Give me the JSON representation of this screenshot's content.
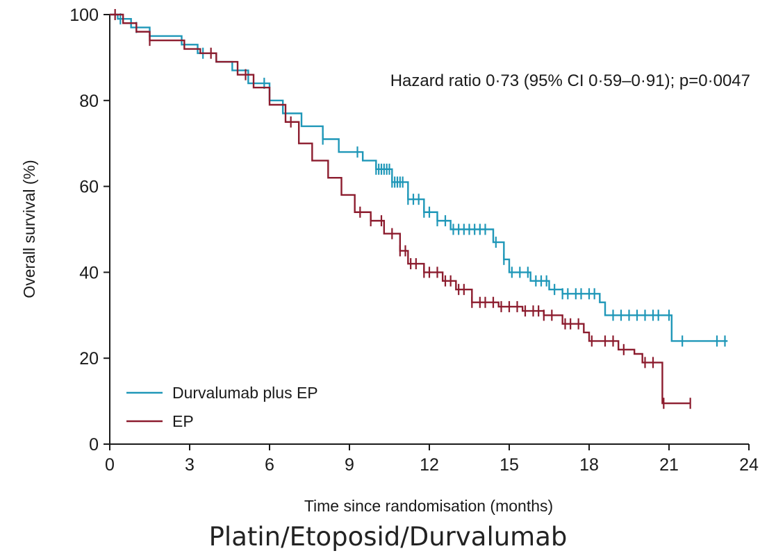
{
  "caption": "Platin/Etoposid/Durvalumab",
  "chart_data": {
    "type": "line",
    "subtype": "kaplan-meier",
    "annotation": "Hazard ratio 0·73 (95% CI 0·59–0·91); p=0·0047",
    "xlabel": "Time since randomisation (months)",
    "ylabel": "Overall survival (%)",
    "xlim": [
      0,
      24
    ],
    "ylim": [
      0,
      100
    ],
    "xticks": [
      0,
      3,
      6,
      9,
      12,
      15,
      18,
      21,
      24
    ],
    "yticks": [
      0,
      20,
      40,
      60,
      80,
      100
    ],
    "grid": false,
    "legend_position": "bottom-left",
    "series": [
      {
        "name": "Durvalumab plus EP",
        "color": "#1f97b8",
        "points": [
          [
            0,
            100
          ],
          [
            0.3,
            99
          ],
          [
            0.8,
            97
          ],
          [
            1.5,
            95
          ],
          [
            2.7,
            93
          ],
          [
            3.3,
            91
          ],
          [
            4.0,
            89
          ],
          [
            4.6,
            87
          ],
          [
            5.2,
            84
          ],
          [
            6.0,
            80
          ],
          [
            6.5,
            77
          ],
          [
            7.2,
            74
          ],
          [
            8.0,
            71
          ],
          [
            8.6,
            68
          ],
          [
            9.5,
            66
          ],
          [
            10.0,
            64
          ],
          [
            10.6,
            61
          ],
          [
            11.2,
            57
          ],
          [
            11.8,
            54
          ],
          [
            12.3,
            52
          ],
          [
            12.8,
            50
          ],
          [
            14.1,
            50
          ],
          [
            14.4,
            47
          ],
          [
            14.8,
            43
          ],
          [
            15.0,
            40
          ],
          [
            15.8,
            38
          ],
          [
            16.5,
            36
          ],
          [
            17.0,
            35
          ],
          [
            18.4,
            33
          ],
          [
            18.6,
            30
          ],
          [
            20.9,
            30
          ],
          [
            21.1,
            24
          ],
          [
            23.2,
            24
          ]
        ],
        "censor_x": [
          0.4,
          1.0,
          3.5,
          5.8,
          8.0,
          9.3,
          10.0,
          10.1,
          10.2,
          10.3,
          10.4,
          10.5,
          10.6,
          10.7,
          10.8,
          10.9,
          11.0,
          11.2,
          11.4,
          11.6,
          11.8,
          12.0,
          12.3,
          12.6,
          12.9,
          13.1,
          13.3,
          13.5,
          13.7,
          13.9,
          14.1,
          14.5,
          14.8,
          15.1,
          15.4,
          15.7,
          16.0,
          16.2,
          16.4,
          16.7,
          17.0,
          17.2,
          17.5,
          17.7,
          18.0,
          18.2,
          18.9,
          19.2,
          19.5,
          19.8,
          20.1,
          20.4,
          20.6,
          21.0,
          21.5,
          22.8,
          23.1
        ]
      },
      {
        "name": "EP",
        "color": "#8c1c2e",
        "points": [
          [
            0,
            100
          ],
          [
            0.5,
            98
          ],
          [
            1.0,
            96
          ],
          [
            1.5,
            94
          ],
          [
            2.8,
            92
          ],
          [
            3.4,
            91
          ],
          [
            4.0,
            89
          ],
          [
            4.8,
            86
          ],
          [
            5.4,
            83
          ],
          [
            6.0,
            79
          ],
          [
            6.6,
            75
          ],
          [
            7.1,
            70
          ],
          [
            7.6,
            66
          ],
          [
            8.2,
            62
          ],
          [
            8.7,
            58
          ],
          [
            9.2,
            54
          ],
          [
            9.8,
            52
          ],
          [
            10.3,
            49
          ],
          [
            10.9,
            45
          ],
          [
            11.2,
            42
          ],
          [
            11.8,
            40
          ],
          [
            12.5,
            38
          ],
          [
            13.0,
            36
          ],
          [
            13.6,
            33
          ],
          [
            14.6,
            32
          ],
          [
            15.5,
            31
          ],
          [
            16.3,
            30
          ],
          [
            17.0,
            28
          ],
          [
            17.8,
            26
          ],
          [
            18.0,
            24
          ],
          [
            19.1,
            22
          ],
          [
            19.7,
            21
          ],
          [
            20.0,
            19
          ],
          [
            20.7,
            19
          ],
          [
            20.75,
            9.5
          ],
          [
            21.8,
            9.5
          ]
        ],
        "censor_x": [
          0.2,
          1.5,
          3.8,
          5.1,
          6.8,
          9.4,
          9.8,
          10.2,
          10.6,
          10.9,
          11.1,
          11.3,
          11.5,
          11.8,
          12.0,
          12.3,
          12.6,
          12.8,
          13.1,
          13.3,
          13.6,
          13.9,
          14.1,
          14.4,
          14.7,
          15.0,
          15.3,
          15.6,
          15.9,
          16.1,
          16.3,
          16.6,
          17.1,
          17.3,
          17.6,
          18.1,
          18.6,
          18.9,
          19.3,
          20.1,
          20.4,
          20.8,
          21.8
        ]
      }
    ]
  }
}
